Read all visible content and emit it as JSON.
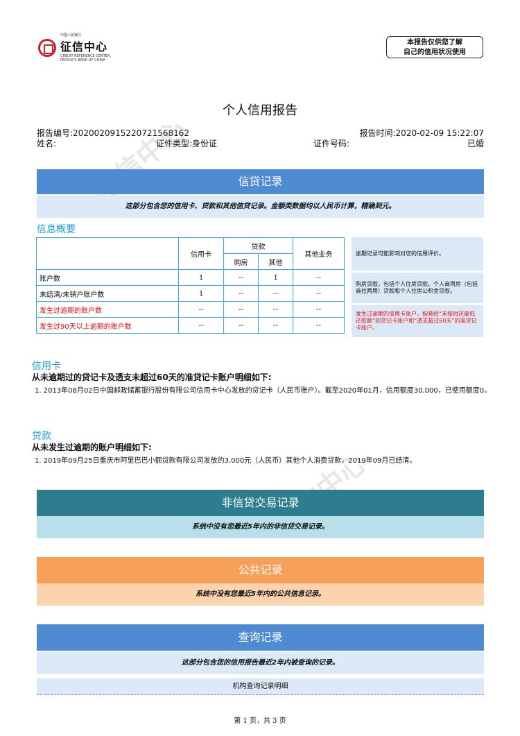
{
  "header": {
    "logo_top": "中国人民银行",
    "logo_name": "征信中心",
    "logo_en": "CREDIT REFERENCE CENTER, PEOPLE'S BANK OF CHINA",
    "stamp_line1": "本报告仅供您了解",
    "stamp_line2": "自己的信用状况使用"
  },
  "title": "个人信用报告",
  "meta": {
    "report_no_label": "报告编号:",
    "report_no": "2020020915220721568162",
    "report_time_label": "报告时间:",
    "report_time": "2020-02-09 15:22:07",
    "name_label": "姓名:",
    "id_type_label": "证件类型:",
    "id_type": "身份证",
    "id_no_label": "证件号码:",
    "marital": "已婚"
  },
  "credit": {
    "band": "信贷记录",
    "desc": "这部分包含您的信用卡、贷款和其他信贷记录。金额类数据均以人民币计算，精确到元。",
    "overview_title": "信息概要",
    "table": {
      "col_card": "信用卡",
      "col_loan": "贷款",
      "col_house": "购房",
      "col_other": "其他",
      "col_biz": "其他业务",
      "rows": [
        {
          "label": "账户数",
          "card": "1",
          "house": "--",
          "other": "1",
          "biz": "--"
        },
        {
          "label": "未结清/未销户账户数",
          "card": "1",
          "house": "--",
          "other": "--",
          "biz": "--"
        },
        {
          "label": "发生过逾期的账户数",
          "card": "--",
          "house": "--",
          "other": "--",
          "biz": "--"
        },
        {
          "label": "发生过90天以上逾期的账户数",
          "card": "--",
          "house": "--",
          "other": "--",
          "biz": "--"
        }
      ]
    },
    "notes": [
      "逾期记录可能影响对您的信用评价。",
      "购房贷款，包括个人住房贷款、个人商用房（包括商住两用）贷款和个人住房公积金贷款。",
      "发生过逾期的信用卡账户，指曾经“未按时还最低还款额”的贷记卡账户和“透支超过60天”的准贷记卡账户。"
    ],
    "card_title": "信用卡",
    "card_sub": "从未逾期过的贷记卡及透支未超过60天的准贷记卡账户明细如下:",
    "card_item": "1. 2013年08月02日中国邮政储蓄银行股份有限公司信用卡中心发放的贷记卡（人民币账户）。截至2020年01月，信用额度30,000，已使用额度0。",
    "loan_title": "贷款",
    "loan_sub": "从未发生过逾期的账户明细如下:",
    "loan_item": "1. 2019年09月25日重庆市阿里巴巴小额贷款有限公司发放的3,000元（人民币）其他个人消费贷款，2019年09月已结清。"
  },
  "noncredit": {
    "band": "非信贷交易记录",
    "desc": "系统中没有您最近5年内的非信贷交易记录。"
  },
  "public": {
    "band": "公共记录",
    "desc": "系统中没有您最近5年内的公共信息记录。"
  },
  "query": {
    "band": "查询记录",
    "desc": "这部分包含您的信用报告最近2年内被查询的记录。",
    "sub": "机构查询记录明细"
  },
  "footer": "第 1 页，共 3 页",
  "colors": {
    "blue": "#4f8bd3",
    "teal": "#2e7d8f",
    "orange": "#f6a05a",
    "light_blue": "#dce9f8",
    "light_teal": "#b9dfe9",
    "light_orange": "#fbd3ad"
  }
}
